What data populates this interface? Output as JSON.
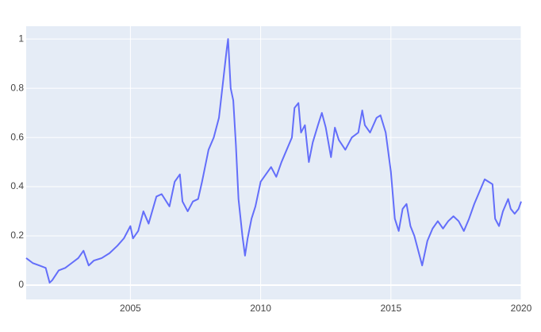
{
  "chart_data": {
    "type": "line",
    "x": [
      2001.0,
      2001.25,
      2001.5,
      2001.75,
      2001.9,
      2002.0,
      2002.25,
      2002.5,
      2002.75,
      2003.0,
      2003.2,
      2003.4,
      2003.6,
      2003.9,
      2004.2,
      2004.5,
      2004.75,
      2005.0,
      2005.1,
      2005.3,
      2005.5,
      2005.7,
      2006.0,
      2006.2,
      2006.5,
      2006.7,
      2006.9,
      2007.0,
      2007.2,
      2007.4,
      2007.6,
      2007.75,
      2008.0,
      2008.2,
      2008.4,
      2008.55,
      2008.7,
      2008.75,
      2008.85,
      2008.95,
      2009.05,
      2009.15,
      2009.3,
      2009.4,
      2009.5,
      2009.65,
      2009.8,
      2010.0,
      2010.2,
      2010.4,
      2010.6,
      2010.8,
      2011.0,
      2011.2,
      2011.3,
      2011.45,
      2011.55,
      2011.7,
      2011.85,
      2012.0,
      2012.2,
      2012.35,
      2012.5,
      2012.7,
      2012.85,
      2013.0,
      2013.25,
      2013.5,
      2013.75,
      2013.9,
      2014.0,
      2014.2,
      2014.45,
      2014.6,
      2014.8,
      2015.0,
      2015.15,
      2015.3,
      2015.45,
      2015.6,
      2015.75,
      2015.9,
      2016.1,
      2016.2,
      2016.4,
      2016.6,
      2016.8,
      2017.0,
      2017.2,
      2017.4,
      2017.6,
      2017.8,
      2018.0,
      2018.2,
      2018.4,
      2018.6,
      2018.75,
      2018.9,
      2019.0,
      2019.15,
      2019.3,
      2019.5,
      2019.6,
      2019.75,
      2019.9,
      2020.0
    ],
    "values": [
      0.11,
      0.09,
      0.08,
      0.07,
      0.01,
      0.02,
      0.06,
      0.07,
      0.09,
      0.11,
      0.14,
      0.08,
      0.1,
      0.11,
      0.13,
      0.16,
      0.19,
      0.24,
      0.19,
      0.22,
      0.3,
      0.25,
      0.36,
      0.37,
      0.32,
      0.42,
      0.45,
      0.34,
      0.3,
      0.34,
      0.35,
      0.42,
      0.55,
      0.6,
      0.68,
      0.82,
      0.96,
      1.0,
      0.8,
      0.75,
      0.57,
      0.35,
      0.2,
      0.12,
      0.19,
      0.27,
      0.32,
      0.42,
      0.45,
      0.48,
      0.44,
      0.5,
      0.55,
      0.6,
      0.72,
      0.74,
      0.62,
      0.65,
      0.5,
      0.58,
      0.65,
      0.7,
      0.64,
      0.52,
      0.64,
      0.59,
      0.55,
      0.6,
      0.62,
      0.71,
      0.65,
      0.62,
      0.68,
      0.69,
      0.62,
      0.46,
      0.27,
      0.22,
      0.31,
      0.33,
      0.24,
      0.2,
      0.12,
      0.08,
      0.18,
      0.23,
      0.26,
      0.23,
      0.26,
      0.28,
      0.26,
      0.22,
      0.27,
      0.33,
      0.38,
      0.43,
      0.42,
      0.41,
      0.27,
      0.24,
      0.3,
      0.35,
      0.31,
      0.29,
      0.31,
      0.34
    ],
    "color": "#636efa",
    "xlim": [
      2001,
      2020
    ],
    "xticks": [
      2005,
      2010,
      2015,
      2020
    ],
    "ylim": [
      -0.058,
      1.052
    ],
    "yticks": [
      0,
      0.2,
      0.4,
      0.6,
      0.8,
      1
    ],
    "grid": true
  }
}
